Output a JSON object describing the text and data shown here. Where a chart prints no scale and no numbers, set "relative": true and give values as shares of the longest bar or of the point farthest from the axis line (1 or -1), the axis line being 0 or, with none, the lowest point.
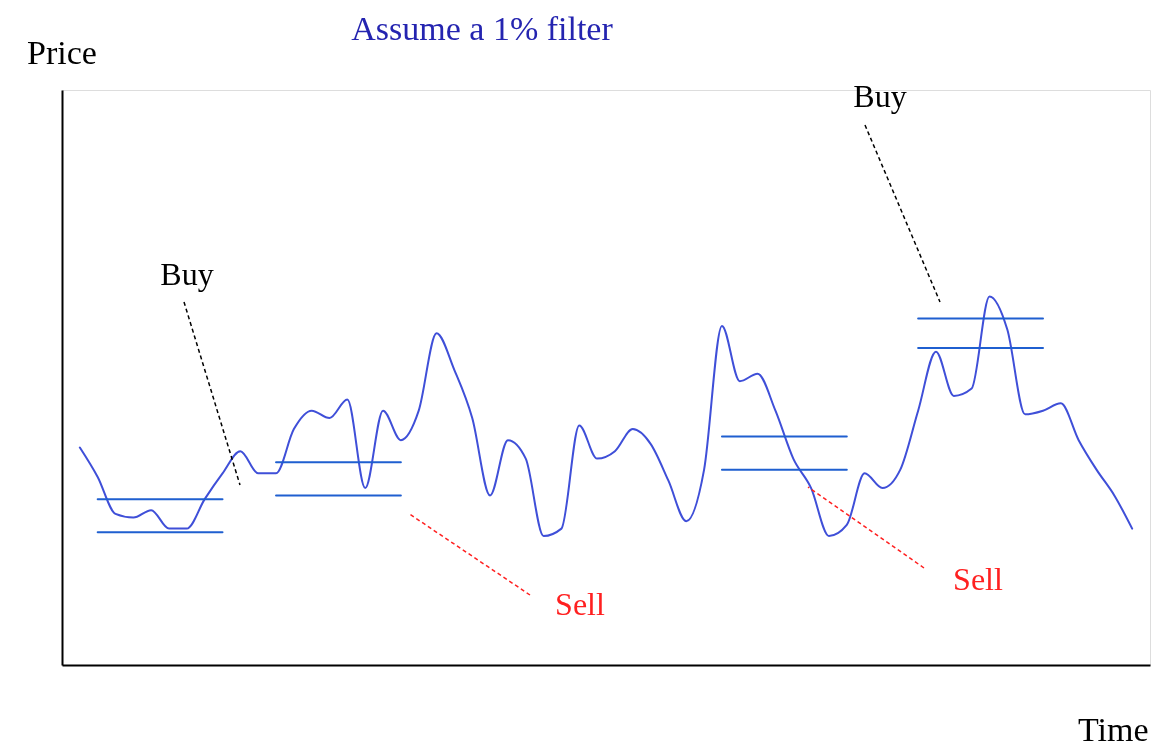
{
  "chart_data": {
    "type": "line",
    "title": "Assume a 1% filter",
    "xlabel": "Time",
    "relative": true,
    "grid": false,
    "legend": false,
    "marker": "none",
    "line_style": "solid",
    "categories": [
      null,
      null,
      null,
      null,
      null,
      null,
      null,
      null,
      null,
      null,
      null,
      null,
      null,
      null,
      null,
      null,
      null,
      null,
      null,
      null,
      null,
      null,
      null,
      null,
      null,
      null,
      null,
      null,
      null,
      null,
      null,
      null,
      null,
      null,
      null,
      null,
      null,
      null,
      null,
      null,
      null,
      null,
      null,
      null,
      null,
      null,
      null,
      null,
      null,
      null,
      null,
      null,
      null,
      null,
      null,
      null,
      null,
      null,
      null,
      null
    ],
    "series": [
      {
        "color": "#3f4fd8",
        "values": [
          0.59,
          0.51,
          0.41,
          0.4,
          0.42,
          0.37,
          0.37,
          0.45,
          0.52,
          0.58,
          0.52,
          0.52,
          0.64,
          0.69,
          0.67,
          0.72,
          0.48,
          0.69,
          0.61,
          0.69,
          0.9,
          0.8,
          0.67,
          0.46,
          0.61,
          0.56,
          0.35,
          0.37,
          0.65,
          0.56,
          0.58,
          0.64,
          0.6,
          0.5,
          0.39,
          0.53,
          0.92,
          0.77,
          0.79,
          0.69,
          0.56,
          0.48,
          0.35,
          0.38,
          0.52,
          0.48,
          0.53,
          0.69,
          0.85,
          0.73,
          0.75,
          1.0,
          0.91,
          0.68,
          0.69,
          0.71,
          0.61,
          0.53,
          0.46,
          0.37
        ]
      },
      {
        "color": "#1f5fd0",
        "values": [
          null,
          0.45,
          0.45,
          0.45,
          0.45,
          0.45,
          0.45,
          0.45,
          0.45,
          null,
          null,
          null,
          null,
          null,
          null,
          null,
          null,
          null,
          null,
          null,
          null,
          null,
          null,
          null,
          null,
          null,
          null,
          null,
          null,
          null,
          null,
          null,
          null,
          null,
          null,
          null,
          null,
          null,
          null,
          null,
          null,
          null,
          null,
          null,
          null,
          null,
          null,
          null,
          null,
          null,
          null,
          null,
          null,
          null,
          null,
          null,
          null,
          null,
          null,
          null
        ]
      },
      {
        "color": "#1f5fd0",
        "values": [
          null,
          0.36,
          0.36,
          0.36,
          0.36,
          0.36,
          0.36,
          0.36,
          0.36,
          null,
          null,
          null,
          null,
          null,
          null,
          null,
          null,
          null,
          null,
          null,
          null,
          null,
          null,
          null,
          null,
          null,
          null,
          null,
          null,
          null,
          null,
          null,
          null,
          null,
          null,
          null,
          null,
          null,
          null,
          null,
          null,
          null,
          null,
          null,
          null,
          null,
          null,
          null,
          null,
          null,
          null,
          null,
          null,
          null,
          null,
          null,
          null,
          null,
          null,
          null
        ]
      },
      {
        "color": "#1f5fd0",
        "values": [
          null,
          null,
          null,
          null,
          null,
          null,
          null,
          null,
          null,
          null,
          null,
          0.55,
          0.55,
          0.55,
          0.55,
          0.55,
          0.55,
          0.55,
          0.55,
          null,
          null,
          null,
          null,
          null,
          null,
          null,
          null,
          null,
          null,
          null,
          null,
          null,
          null,
          null,
          null,
          null,
          null,
          null,
          null,
          null,
          null,
          null,
          null,
          null,
          null,
          null,
          null,
          null,
          null,
          null,
          null,
          null,
          null,
          null,
          null,
          null,
          null,
          null,
          null,
          null
        ]
      },
      {
        "color": "#1f5fd0",
        "values": [
          null,
          null,
          null,
          null,
          null,
          null,
          null,
          null,
          null,
          null,
          null,
          0.46,
          0.46,
          0.46,
          0.46,
          0.46,
          0.46,
          0.46,
          0.46,
          null,
          null,
          null,
          null,
          null,
          null,
          null,
          null,
          null,
          null,
          null,
          null,
          null,
          null,
          null,
          null,
          null,
          null,
          null,
          null,
          null,
          null,
          null,
          null,
          null,
          null,
          null,
          null,
          null,
          null,
          null,
          null,
          null,
          null,
          null,
          null,
          null,
          null,
          null,
          null,
          null
        ]
      },
      {
        "color": "#1f5fd0",
        "values": [
          null,
          null,
          null,
          null,
          null,
          null,
          null,
          null,
          null,
          null,
          null,
          null,
          null,
          null,
          null,
          null,
          null,
          null,
          null,
          null,
          null,
          null,
          null,
          null,
          null,
          null,
          null,
          null,
          null,
          null,
          null,
          null,
          null,
          null,
          null,
          null,
          0.62,
          0.62,
          0.62,
          0.62,
          0.62,
          0.62,
          0.62,
          0.62,
          null,
          null,
          null,
          null,
          null,
          null,
          null,
          null,
          null,
          null,
          null,
          null,
          null,
          null,
          null,
          null
        ]
      },
      {
        "color": "#1f5fd0",
        "values": [
          null,
          null,
          null,
          null,
          null,
          null,
          null,
          null,
          null,
          null,
          null,
          null,
          null,
          null,
          null,
          null,
          null,
          null,
          null,
          null,
          null,
          null,
          null,
          null,
          null,
          null,
          null,
          null,
          null,
          null,
          null,
          null,
          null,
          null,
          null,
          null,
          0.53,
          0.53,
          0.53,
          0.53,
          0.53,
          0.53,
          0.53,
          0.53,
          null,
          null,
          null,
          null,
          null,
          null,
          null,
          null,
          null,
          null,
          null,
          null,
          null,
          null,
          null,
          null
        ]
      },
      {
        "color": "#1f5fd0",
        "values": [
          null,
          null,
          null,
          null,
          null,
          null,
          null,
          null,
          null,
          null,
          null,
          null,
          null,
          null,
          null,
          null,
          null,
          null,
          null,
          null,
          null,
          null,
          null,
          null,
          null,
          null,
          null,
          null,
          null,
          null,
          null,
          null,
          null,
          null,
          null,
          null,
          null,
          null,
          null,
          null,
          null,
          null,
          null,
          null,
          null,
          null,
          null,
          0.94,
          0.94,
          0.94,
          0.94,
          0.94,
          0.94,
          0.94,
          0.94,
          null,
          null,
          null,
          null,
          null
        ]
      },
      {
        "color": "#1f5fd0",
        "values": [
          null,
          null,
          null,
          null,
          null,
          null,
          null,
          null,
          null,
          null,
          null,
          null,
          null,
          null,
          null,
          null,
          null,
          null,
          null,
          null,
          null,
          null,
          null,
          null,
          null,
          null,
          null,
          null,
          null,
          null,
          null,
          null,
          null,
          null,
          null,
          null,
          null,
          null,
          null,
          null,
          null,
          null,
          null,
          null,
          null,
          null,
          null,
          0.86,
          0.86,
          0.86,
          0.86,
          0.86,
          0.86,
          0.86,
          0.86,
          null,
          null,
          null,
          null,
          null
        ]
      }
    ],
    "annotations": [
      "Buy",
      "Buy",
      "Sell",
      "Sell",
      "Price"
    ]
  }
}
